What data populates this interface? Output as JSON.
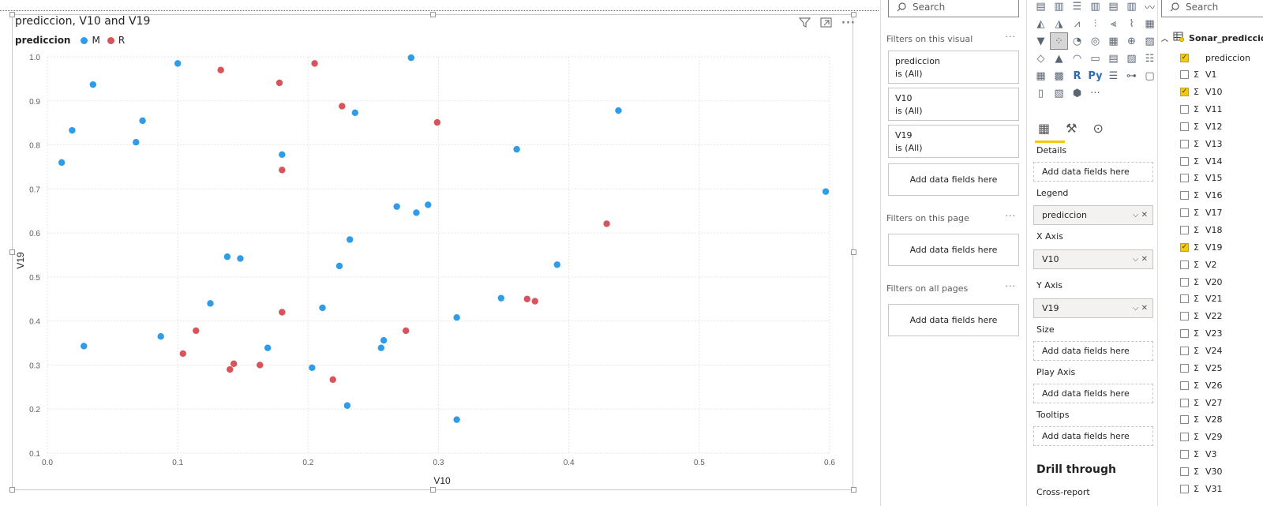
{
  "visual": {
    "title": "prediccion, V10 and V19",
    "legend_title": "prediccion",
    "legend_items": [
      {
        "label": "M",
        "color": "#2e9ce8"
      },
      {
        "label": "R",
        "color": "#d9535a"
      }
    ]
  },
  "chart_data": {
    "type": "scatter",
    "xlabel": "V10",
    "ylabel": "V19",
    "xlim": [
      0.0,
      0.6
    ],
    "ylim": [
      0.1,
      1.0
    ],
    "x_ticks": [
      "0.0",
      "0.1",
      "0.2",
      "0.3",
      "0.4",
      "0.5",
      "0.6"
    ],
    "y_ticks": [
      "0.1",
      "0.2",
      "0.3",
      "0.4",
      "0.5",
      "0.6",
      "0.7",
      "0.8",
      "0.9",
      "1.0"
    ],
    "grid": true,
    "series": [
      {
        "name": "M",
        "color": "#2e9ce8",
        "points": [
          [
            0.011,
            0.76
          ],
          [
            0.019,
            0.833
          ],
          [
            0.028,
            0.343
          ],
          [
            0.035,
            0.937
          ],
          [
            0.068,
            0.806
          ],
          [
            0.073,
            0.855
          ],
          [
            0.087,
            0.365
          ],
          [
            0.1,
            0.985
          ],
          [
            0.125,
            0.44
          ],
          [
            0.138,
            0.546
          ],
          [
            0.148,
            0.542
          ],
          [
            0.169,
            0.339
          ],
          [
            0.18,
            0.778
          ],
          [
            0.203,
            0.294
          ],
          [
            0.211,
            0.43
          ],
          [
            0.224,
            0.525
          ],
          [
            0.23,
            0.208
          ],
          [
            0.232,
            0.585
          ],
          [
            0.236,
            0.873
          ],
          [
            0.256,
            0.339
          ],
          [
            0.258,
            0.356
          ],
          [
            0.268,
            0.66
          ],
          [
            0.279,
            0.998
          ],
          [
            0.283,
            0.646
          ],
          [
            0.292,
            0.664
          ],
          [
            0.314,
            0.176
          ],
          [
            0.314,
            0.408
          ],
          [
            0.348,
            0.452
          ],
          [
            0.36,
            0.79
          ],
          [
            0.391,
            0.528
          ],
          [
            0.438,
            0.878
          ],
          [
            0.597,
            0.694
          ]
        ]
      },
      {
        "name": "R",
        "color": "#d9535a",
        "points": [
          [
            0.104,
            0.326
          ],
          [
            0.114,
            0.378
          ],
          [
            0.133,
            0.97
          ],
          [
            0.14,
            0.29
          ],
          [
            0.143,
            0.303
          ],
          [
            0.163,
            0.3
          ],
          [
            0.178,
            0.941
          ],
          [
            0.18,
            0.743
          ],
          [
            0.18,
            0.42
          ],
          [
            0.205,
            0.985
          ],
          [
            0.219,
            0.267
          ],
          [
            0.226,
            0.888
          ],
          [
            0.275,
            0.378
          ],
          [
            0.299,
            0.851
          ],
          [
            0.368,
            0.45
          ],
          [
            0.374,
            0.445
          ],
          [
            0.429,
            0.621
          ]
        ]
      }
    ]
  },
  "filters_pane": {
    "search_placeholder": "Search",
    "on_visual_label": "Filters on this visual",
    "on_page_label": "Filters on this page",
    "all_pages_label": "Filters on all pages",
    "cards": [
      {
        "name": "prediccion",
        "state": "is (All)"
      },
      {
        "name": "V10",
        "state": "is (All)"
      },
      {
        "name": "V19",
        "state": "is (All)"
      }
    ],
    "add_fields": "Add data fields here"
  },
  "viz_pane": {
    "details_label": "Details",
    "legend_label": "Legend",
    "legend_value": "prediccion",
    "xaxis_label": "X Axis",
    "xaxis_value": "V10",
    "yaxis_label": "Y Axis",
    "yaxis_value": "V19",
    "size_label": "Size",
    "play_label": "Play Axis",
    "tooltips_label": "Tooltips",
    "add_fields": "Add data fields here",
    "drill_label": "Drill through",
    "cross_report": "Cross-report",
    "r_glyph": "R",
    "py_glyph": "Py",
    "more": "···"
  },
  "fields_pane": {
    "search_placeholder": "Search",
    "table_name": "Sonar_prediccion",
    "fields": [
      {
        "name": "prediccion",
        "checked": true,
        "sigma": false
      },
      {
        "name": "V1",
        "checked": false,
        "sigma": true
      },
      {
        "name": "V10",
        "checked": true,
        "sigma": true
      },
      {
        "name": "V11",
        "checked": false,
        "sigma": true
      },
      {
        "name": "V12",
        "checked": false,
        "sigma": true
      },
      {
        "name": "V13",
        "checked": false,
        "sigma": true
      },
      {
        "name": "V14",
        "checked": false,
        "sigma": true
      },
      {
        "name": "V15",
        "checked": false,
        "sigma": true
      },
      {
        "name": "V16",
        "checked": false,
        "sigma": true
      },
      {
        "name": "V17",
        "checked": false,
        "sigma": true
      },
      {
        "name": "V18",
        "checked": false,
        "sigma": true
      },
      {
        "name": "V19",
        "checked": true,
        "sigma": true
      },
      {
        "name": "V2",
        "checked": false,
        "sigma": true
      },
      {
        "name": "V20",
        "checked": false,
        "sigma": true
      },
      {
        "name": "V21",
        "checked": false,
        "sigma": true
      },
      {
        "name": "V22",
        "checked": false,
        "sigma": true
      },
      {
        "name": "V23",
        "checked": false,
        "sigma": true
      },
      {
        "name": "V24",
        "checked": false,
        "sigma": true
      },
      {
        "name": "V25",
        "checked": false,
        "sigma": true
      },
      {
        "name": "V26",
        "checked": false,
        "sigma": true
      },
      {
        "name": "V27",
        "checked": false,
        "sigma": true
      },
      {
        "name": "V28",
        "checked": false,
        "sigma": true
      },
      {
        "name": "V29",
        "checked": false,
        "sigma": true
      },
      {
        "name": "V3",
        "checked": false,
        "sigma": true
      },
      {
        "name": "V30",
        "checked": false,
        "sigma": true
      },
      {
        "name": "V31",
        "checked": false,
        "sigma": true
      }
    ]
  }
}
